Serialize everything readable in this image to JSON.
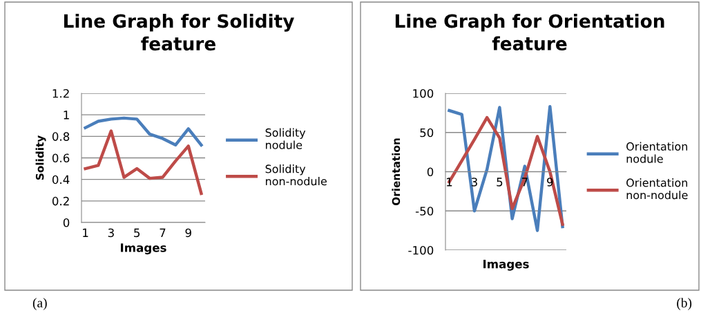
{
  "chart_data": [
    {
      "type": "line",
      "title": "Line Graph for Solidity feature",
      "xlabel": "Images",
      "ylabel": "Solidity",
      "categories": [
        "1",
        null,
        "3",
        null,
        "5",
        null,
        "7",
        null,
        "9",
        null
      ],
      "series": [
        {
          "name": "Solidity nodule",
          "color": "#4a7ebb",
          "values": [
            0.88,
            0.94,
            0.96,
            0.97,
            0.96,
            0.82,
            0.78,
            0.72,
            0.87,
            0.72
          ]
        },
        {
          "name": "Solidity non-nodule",
          "color": "#be4b48",
          "values": [
            0.5,
            0.53,
            0.85,
            0.42,
            0.5,
            0.41,
            0.42,
            0.57,
            0.71,
            0.27
          ]
        }
      ],
      "ylim": [
        0,
        1.2
      ],
      "yticks": [
        0,
        0.2,
        0.4,
        0.6,
        0.8,
        1,
        1.2
      ],
      "grid": "y",
      "legend": "right",
      "marker": "none",
      "line_style": "solid",
      "annotations": [
        "(a)"
      ]
    },
    {
      "type": "line",
      "title": "Line Graph for Orientation feature",
      "xlabel": "Images",
      "ylabel": "Orientation",
      "categories": [
        "1",
        null,
        "3",
        null,
        "5",
        null,
        "7",
        null,
        "9",
        null
      ],
      "series": [
        {
          "name": "Orientation nodule",
          "color": "#4a7ebb",
          "values": [
            78,
            73,
            -50,
            3,
            82,
            -60,
            7,
            -75,
            83,
            -70
          ]
        },
        {
          "name": "Orientation non-nodule",
          "color": "#be4b48",
          "values": [
            -13,
            14,
            41,
            69,
            43,
            -47,
            -8,
            45,
            0,
            -67
          ]
        }
      ],
      "ylim": [
        -100,
        100
      ],
      "yticks": [
        -100,
        -50,
        0,
        50,
        100
      ],
      "grid": "y",
      "legend": "right",
      "marker": "none",
      "line_style": "solid",
      "annotations": [
        "(b)"
      ]
    }
  ]
}
